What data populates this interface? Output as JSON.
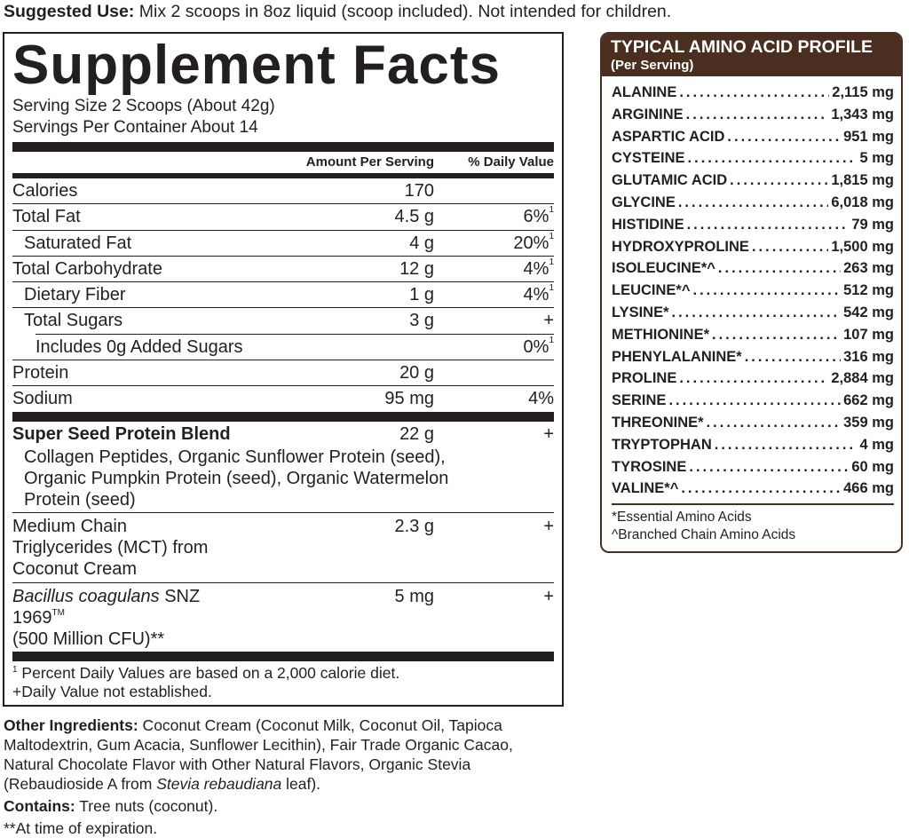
{
  "suggested_use": {
    "label": "Suggested Use:",
    "text": " Mix 2 scoops in 8oz liquid (scoop included). Not intended for children."
  },
  "facts": {
    "title": "Supplement Facts",
    "serving_size": "Serving Size 2 Scoops (About 42g)",
    "servings_per_container": "Servings Per Container About 14",
    "header": {
      "amount": "Amount Per Serving",
      "dv": "% Daily Value"
    },
    "rows": [
      {
        "name": "Calories",
        "amount": "170",
        "dv": "",
        "sup": ""
      },
      {
        "name": "Total Fat",
        "amount": "4.5 g",
        "dv": "6%",
        "sup": "1"
      },
      {
        "name": "Saturated Fat",
        "amount": "4 g",
        "dv": "20%",
        "sup": "1"
      },
      {
        "name": "Total Carbohydrate",
        "amount": "12 g",
        "dv": "4%",
        "sup": "1"
      },
      {
        "name": "Dietary Fiber",
        "amount": "1 g",
        "dv": "4%",
        "sup": "1"
      },
      {
        "name": "Total Sugars",
        "amount": "3 g",
        "dv": "+",
        "sup": ""
      },
      {
        "name": "Includes 0g Added Sugars",
        "amount": "",
        "dv": "0%",
        "sup": "1"
      },
      {
        "name": "Protein",
        "amount": "20 g",
        "dv": "",
        "sup": ""
      },
      {
        "name": "Sodium",
        "amount": "95 mg",
        "dv": "4%",
        "sup": ""
      }
    ],
    "blend": {
      "name": "Super Seed Protein Blend",
      "amount": "22 g",
      "dv": "+",
      "ingredients": "Collagen Peptides, Organic Sunflower Protein (seed), Organic Pumpkin Protein (seed), Organic Watermelon Protein (seed)"
    },
    "mct": {
      "name": "Medium Chain Triglycerides (MCT) from Coconut Cream",
      "amount": "2.3 g",
      "dv": "+"
    },
    "bacillus": {
      "name_italic": "Bacillus coagulans",
      "name": " SNZ 1969",
      "tm": "TM",
      "line2": "(500 Million CFU)**",
      "amount": "5 mg",
      "dv": "+"
    },
    "footnote1_sup": "1",
    "footnote1": " Percent Daily Values are based on a 2,000 calorie diet.",
    "footnote2": "+Daily Value not established."
  },
  "other": {
    "label": "Other Ingredients:",
    "text": " Coconut Cream (Coconut Milk, Coconut Oil, Tapioca Maltodextrin, Gum Acacia, Sunflower Lecithin), Fair Trade Organic Cacao, Natural Chocolate Flavor with Other Natural Flavors, Organic Stevia (Rebaudioside A from ",
    "italic": "Stevia rebaudiana",
    "end": " leaf).",
    "contains_label": "Contains:",
    "contains": " Tree nuts (coconut).",
    "expiration": "**At time of expiration."
  },
  "amino": {
    "title": "TYPICAL AMINO ACID PROFILE",
    "subtitle": "(Per Serving)",
    "items": [
      {
        "name": "ALANINE",
        "value": "2,115 mg"
      },
      {
        "name": "ARGININE",
        "value": "1,343 mg"
      },
      {
        "name": "ASPARTIC ACID",
        "value": "951 mg"
      },
      {
        "name": "CYSTEINE",
        "value": "5 mg"
      },
      {
        "name": "GLUTAMIC ACID",
        "value": "1,815 mg"
      },
      {
        "name": "GLYCINE",
        "value": "6,018 mg"
      },
      {
        "name": "HISTIDINE",
        "value": "79 mg"
      },
      {
        "name": "HYDROXYPROLINE",
        "value": "1,500 mg"
      },
      {
        "name": "ISOLEUCINE*^",
        "value": "263 mg"
      },
      {
        "name": "LEUCINE*^",
        "value": "512 mg"
      },
      {
        "name": "LYSINE*",
        "value": "542 mg"
      },
      {
        "name": "METHIONINE*",
        "value": "107 mg"
      },
      {
        "name": "PHENYLALANINE*",
        "value": "316 mg"
      },
      {
        "name": "PROLINE",
        "value": "2,884 mg"
      },
      {
        "name": "SERINE",
        "value": "662 mg"
      },
      {
        "name": "THREONINE*",
        "value": "359 mg"
      },
      {
        "name": "TRYPTOPHAN",
        "value": "4 mg"
      },
      {
        "name": "TYROSINE",
        "value": "60 mg"
      },
      {
        "name": "VALINE*^",
        "value": "466 mg"
      }
    ],
    "note1": "*Essential Amino Acids",
    "note2": "^Branched Chain Amino Acids"
  },
  "colors": {
    "text": "#231f20",
    "amino_brown": "#4a2e20"
  }
}
